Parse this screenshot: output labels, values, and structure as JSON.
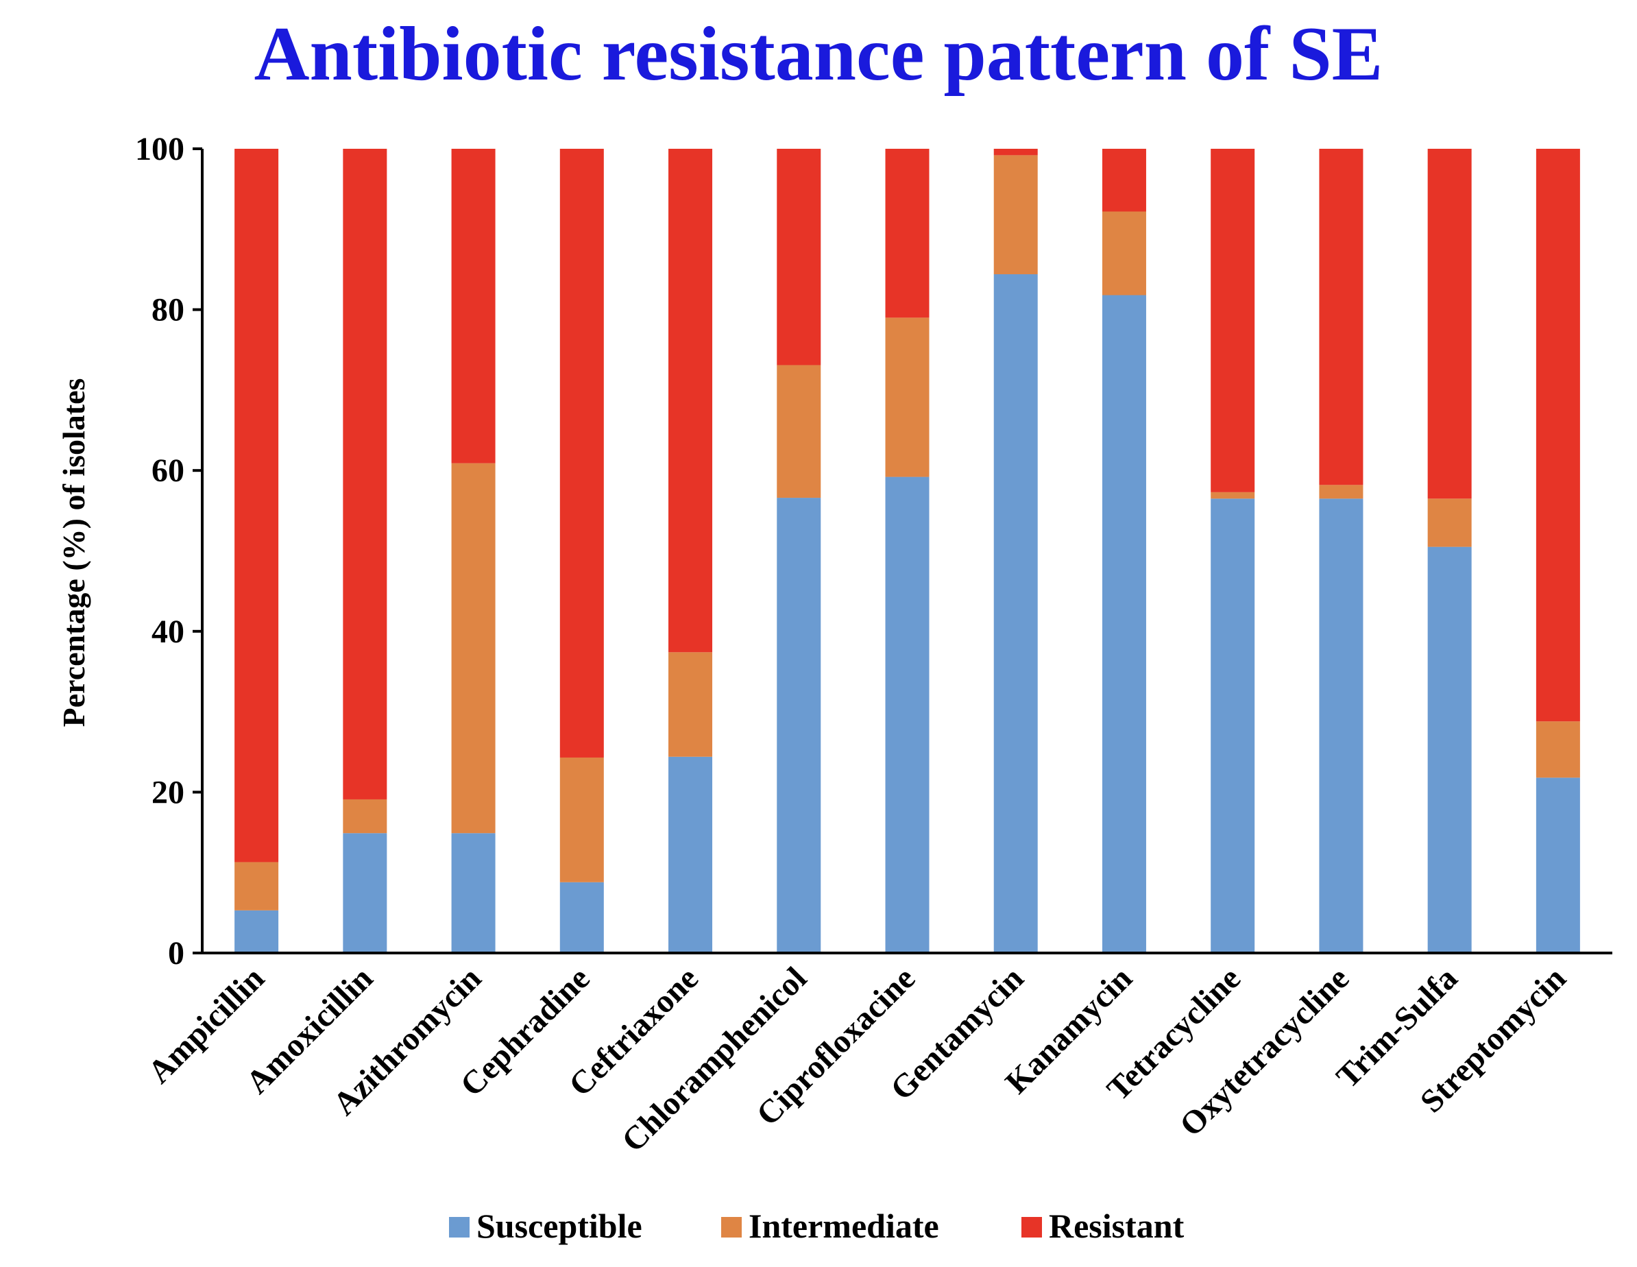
{
  "chart_data": {
    "type": "bar",
    "stacked": true,
    "title": "Antibiotic resistance pattern of SE",
    "title_color": "#1a1adc",
    "xlabel": "",
    "ylabel": "Percentage (%) of isolates",
    "ylim": [
      0,
      100
    ],
    "yticks": [
      "0",
      "20",
      "40",
      "60",
      "80",
      "100"
    ],
    "grid": false,
    "legend_position": "bottom",
    "categories": [
      "Ampicillin",
      "Amoxicillin",
      "Azithromycin",
      "Cephradine",
      "Ceftriaxone",
      "Chloramphenicol",
      "Ciprofloxacine",
      "Gentamycin",
      "Kanamycin",
      "Tetracycline",
      "Oxytetracycline",
      "Trim-Sulfa",
      "Streptomycin"
    ],
    "series": [
      {
        "name": "Susceptible",
        "color": "#6b9bd1",
        "values": [
          5.3,
          14.9,
          14.9,
          8.8,
          24.4,
          56.6,
          59.2,
          84.4,
          81.8,
          56.5,
          56.5,
          50.5,
          21.8
        ]
      },
      {
        "name": "Intermediate",
        "color": "#df8544",
        "values": [
          6.0,
          4.2,
          46.0,
          15.5,
          13.0,
          16.5,
          19.8,
          14.8,
          10.4,
          0.8,
          1.7,
          6.0,
          7.0
        ]
      },
      {
        "name": "Resistant",
        "color": "#e73427",
        "values": [
          88.7,
          80.9,
          39.1,
          75.7,
          62.6,
          26.9,
          21.0,
          0.8,
          7.8,
          42.7,
          41.8,
          43.5,
          71.2
        ]
      }
    ]
  }
}
